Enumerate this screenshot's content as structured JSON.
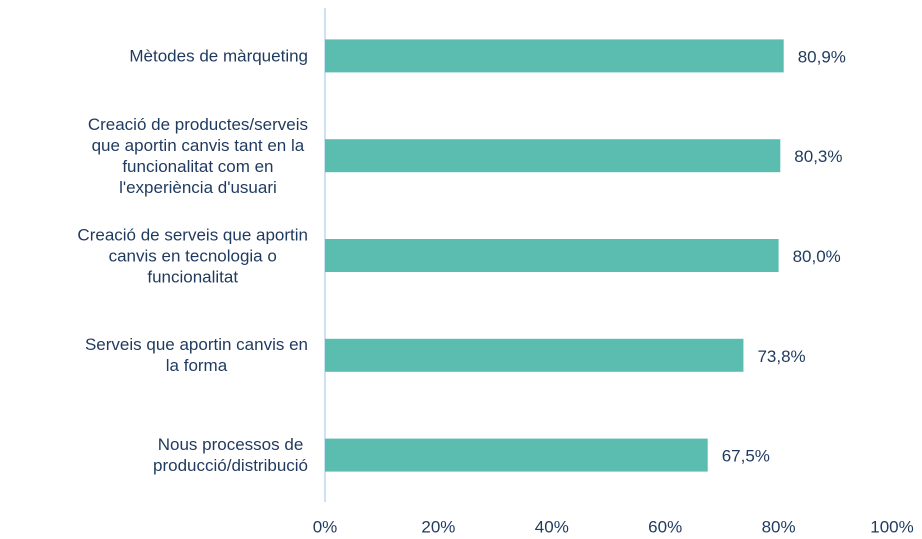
{
  "chart_data": {
    "type": "barh",
    "categories": [
      "Mètodes de màrqueting",
      "Creació de productes/serveis\nque aportin canvis tant en la\nfuncionalitat com en\nl'experiència d'usuari",
      "Creació de serveis que aportin\ncanvis en tecnologia o\nfuncionalitat",
      "Serveis que aportin canvis en\nla forma",
      "Nous processos de\nproducció/distribució"
    ],
    "values": [
      80.9,
      80.3,
      80.0,
      73.8,
      67.5
    ],
    "value_labels": [
      "80,9%",
      "80,3%",
      "80,0%",
      "73,8%",
      "67,5%"
    ],
    "color": "#5bbdb0",
    "xlim": [
      0,
      100
    ],
    "xticks": [
      {
        "value": 0,
        "label": "0%"
      },
      {
        "value": 20,
        "label": "20%"
      },
      {
        "value": 40,
        "label": "40%"
      },
      {
        "value": 60,
        "label": "60%"
      },
      {
        "value": 80,
        "label": "80%"
      },
      {
        "value": 100,
        "label": "100%"
      }
    ]
  }
}
